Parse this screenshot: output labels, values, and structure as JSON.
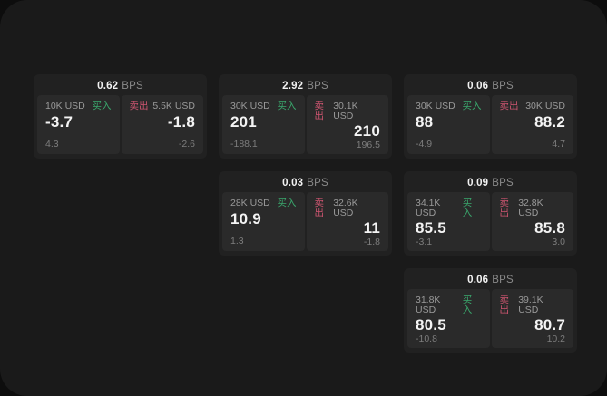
{
  "labels": {
    "buy": "买入",
    "sell": "卖出",
    "bps_unit": "BPS"
  },
  "colors": {
    "buy": "#3aa86d",
    "sell": "#cd5570",
    "window_background": "#1a1a1a",
    "card_background": "#212121",
    "panel_background": "#2a2a2a"
  },
  "cards": [
    {
      "bps": "0.62",
      "row": 1,
      "col": 1,
      "buy": {
        "size": "10K USD",
        "price": "-3.7",
        "delta": "4.3"
      },
      "sell": {
        "size": "5.5K USD",
        "price": "-1.8",
        "delta": "-2.6"
      }
    },
    {
      "bps": "2.92",
      "row": 1,
      "col": 2,
      "buy": {
        "size": "30K USD",
        "price": "201",
        "delta": "-188.1"
      },
      "sell": {
        "size": "30.1K USD",
        "price": "210",
        "delta": "196.5"
      }
    },
    {
      "bps": "0.06",
      "row": 1,
      "col": 3,
      "buy": {
        "size": "30K USD",
        "price": "88",
        "delta": "-4.9"
      },
      "sell": {
        "size": "30K USD",
        "price": "88.2",
        "delta": "4.7"
      }
    },
    {
      "bps": "0.03",
      "row": 2,
      "col": 2,
      "buy": {
        "size": "28K USD",
        "price": "10.9",
        "delta": "1.3"
      },
      "sell": {
        "size": "32.6K USD",
        "price": "11",
        "delta": "-1.8"
      }
    },
    {
      "bps": "0.09",
      "row": 2,
      "col": 3,
      "buy": {
        "size": "34.1K USD",
        "price": "85.5",
        "delta": "-3.1"
      },
      "sell": {
        "size": "32.8K USD",
        "price": "85.8",
        "delta": "3.0"
      }
    },
    {
      "bps": "0.06",
      "row": 3,
      "col": 3,
      "buy": {
        "size": "31.8K USD",
        "price": "80.5",
        "delta": "-10.8"
      },
      "sell": {
        "size": "39.1K USD",
        "price": "80.7",
        "delta": "10.2"
      }
    }
  ]
}
